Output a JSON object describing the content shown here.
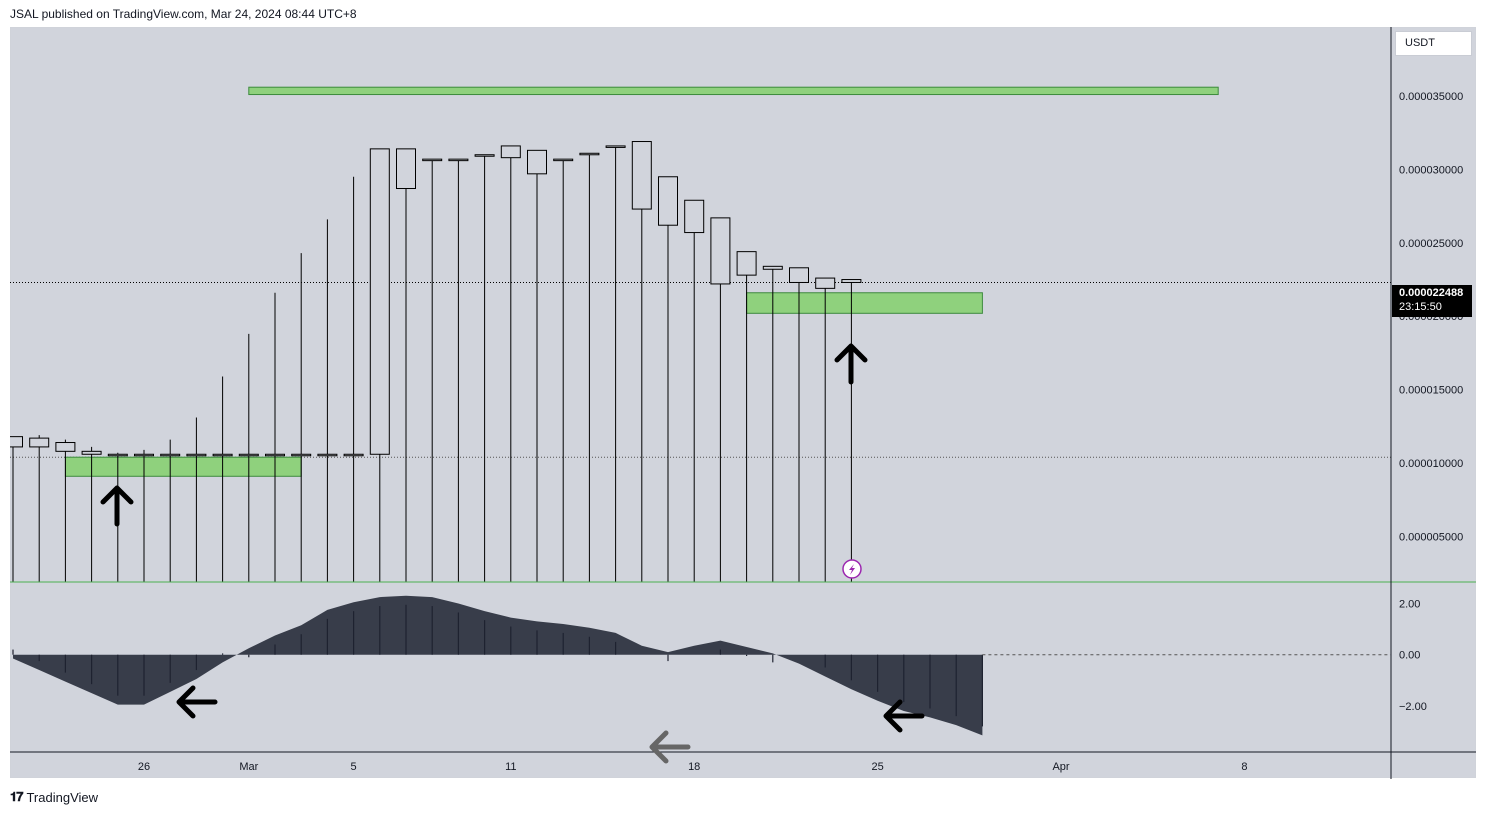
{
  "header": {
    "publisher_line": "JSAL published on TradingView.com, Mar 24, 2024 08:44 UTC+8"
  },
  "footer": {
    "brand": "TradingView",
    "logo_icon": "tradingview-logo-icon"
  },
  "scale": {
    "currency": "USDT"
  },
  "last_price": {
    "value": "0.000022488",
    "countdown": "23:15:50"
  },
  "colors": {
    "background": "#d1d4dc",
    "candle_body": "#d1d4dc",
    "candle_outline": "#000000",
    "zone_fill": "#8fd17d",
    "zone_stroke": "#3c8a3c",
    "macd_area": "#383d4a",
    "separator": "#4caf50"
  },
  "chart_data": [
    {
      "type": "candlestick",
      "title": "",
      "y_tick_labels": [
        "0.000035000",
        "0.000030000",
        "0.000025000",
        "0.000020000",
        "0.000015000",
        "0.000010000",
        "0.000005000"
      ],
      "x_tick_labels": [
        "26",
        "Mar",
        "5",
        "11",
        "18",
        "25",
        "Apr",
        "8"
      ],
      "ylim": [
        1.9e-06,
        3.97e-05
      ],
      "candles": [
        {
          "o": 1.11e-05,
          "h": 1.16e-05,
          "l": 1e-07,
          "c": 1.18e-05
        },
        {
          "o": 1.17e-05,
          "h": 1.19e-05,
          "l": 1e-07,
          "c": 1.11e-05
        },
        {
          "o": 1.14e-05,
          "h": 1.16e-05,
          "l": 1e-07,
          "c": 1.08e-05
        },
        {
          "o": 1.08e-05,
          "h": 1.11e-05,
          "l": 1e-07,
          "c": 1.06e-05
        },
        {
          "o": 1.06e-05,
          "h": 1.07e-05,
          "l": 1e-07,
          "c": 1.06e-05
        },
        {
          "o": 1.06e-05,
          "h": 1.09e-05,
          "l": 1e-07,
          "c": 1.06e-05
        },
        {
          "o": 1.06e-05,
          "h": 1.16e-05,
          "l": 1e-07,
          "c": 1.06e-05
        },
        {
          "o": 1.06e-05,
          "h": 1.31e-05,
          "l": 1e-07,
          "c": 1.06e-05
        },
        {
          "o": 1.06e-05,
          "h": 1.59e-05,
          "l": 1e-07,
          "c": 1.06e-05
        },
        {
          "o": 1.06e-05,
          "h": 1.88e-05,
          "l": 1e-07,
          "c": 1.06e-05
        },
        {
          "o": 1.06e-05,
          "h": 2.16e-05,
          "l": 1e-07,
          "c": 1.06e-05
        },
        {
          "o": 1.06e-05,
          "h": 2.43e-05,
          "l": 1e-07,
          "c": 1.06e-05
        },
        {
          "o": 1.06e-05,
          "h": 2.66e-05,
          "l": 1e-07,
          "c": 1.06e-05
        },
        {
          "o": 1.06e-05,
          "h": 2.95e-05,
          "l": 1e-07,
          "c": 1.06e-05
        },
        {
          "o": 1.06e-05,
          "h": 3.14e-05,
          "l": 1e-07,
          "c": 3.14e-05
        },
        {
          "o": 2.87e-05,
          "h": 3.14e-05,
          "l": 1e-07,
          "c": 3.14e-05
        },
        {
          "o": 3.07e-05,
          "h": 3.07e-05,
          "l": 1e-07,
          "c": 3.07e-05
        },
        {
          "o": 3.07e-05,
          "h": 3.07e-05,
          "l": 1e-07,
          "c": 3.07e-05
        },
        {
          "o": 3.1e-05,
          "h": 3.1e-05,
          "l": 1e-07,
          "c": 3.1e-05
        },
        {
          "o": 3.08e-05,
          "h": 3.16e-05,
          "l": 1e-07,
          "c": 3.16e-05
        },
        {
          "o": 2.97e-05,
          "h": 3.13e-05,
          "l": 1e-07,
          "c": 3.13e-05
        },
        {
          "o": 3.07e-05,
          "h": 3.07e-05,
          "l": 1e-07,
          "c": 3.07e-05
        },
        {
          "o": 3.11e-05,
          "h": 3.11e-05,
          "l": 1e-07,
          "c": 3.11e-05
        },
        {
          "o": 3.16e-05,
          "h": 3.16e-05,
          "l": 1e-07,
          "c": 3.16e-05
        },
        {
          "o": 2.73e-05,
          "h": 3.19e-05,
          "l": 1e-07,
          "c": 3.19e-05
        },
        {
          "o": 2.95e-05,
          "h": 2.95e-05,
          "l": 1e-07,
          "c": 2.62e-05
        },
        {
          "o": 2.79e-05,
          "h": 2.79e-05,
          "l": 1e-07,
          "c": 2.57e-05
        },
        {
          "o": 2.67e-05,
          "h": 2.67e-05,
          "l": 1e-07,
          "c": 2.22e-05
        },
        {
          "o": 2.44e-05,
          "h": 2.44e-05,
          "l": 1e-07,
          "c": 2.28e-05
        },
        {
          "o": 2.34e-05,
          "h": 2.34e-05,
          "l": 1e-07,
          "c": 2.32e-05
        },
        {
          "o": 2.33e-05,
          "h": 2.33e-05,
          "l": 1e-07,
          "c": 2.23e-05
        },
        {
          "o": 2.26e-05,
          "h": 2.26e-05,
          "l": 1e-07,
          "c": 2.19e-05
        },
        {
          "o": 2.25e-05,
          "h": 2.25e-05,
          "l": 1.5e-06,
          "c": 2.23e-05
        }
      ],
      "zones": [
        {
          "y_top": 3.56e-05,
          "y_bottom": 3.51e-05,
          "x_start_bar": 9,
          "x_end_bar": 46
        },
        {
          "y_top": 2.16e-05,
          "y_bottom": 2.02e-05,
          "x_start_bar": 28,
          "x_end_bar": 37
        },
        {
          "y_top": 1.04e-05,
          "y_bottom": 9.1e-06,
          "x_start_bar": 2,
          "x_end_bar": 11
        }
      ],
      "horizontal_line": 1.04e-05
    },
    {
      "type": "area",
      "title": "",
      "y_tick_labels": [
        "2.00",
        "0.00",
        "−2.00"
      ],
      "ylim": [
        -3.8,
        2.8
      ],
      "values": [
        -0.15,
        -0.6,
        -1.05,
        -1.5,
        -1.95,
        -1.95,
        -1.45,
        -0.95,
        -0.3,
        0.25,
        0.75,
        1.15,
        1.75,
        2.05,
        2.25,
        2.3,
        2.25,
        2.0,
        1.7,
        1.45,
        1.3,
        1.2,
        1.05,
        0.85,
        0.35,
        0.1,
        0.35,
        0.55,
        0.3,
        0.05,
        -0.35,
        -0.85,
        -1.35,
        -1.8,
        -2.2,
        -2.45,
        -2.75,
        -3.15
      ]
    }
  ]
}
